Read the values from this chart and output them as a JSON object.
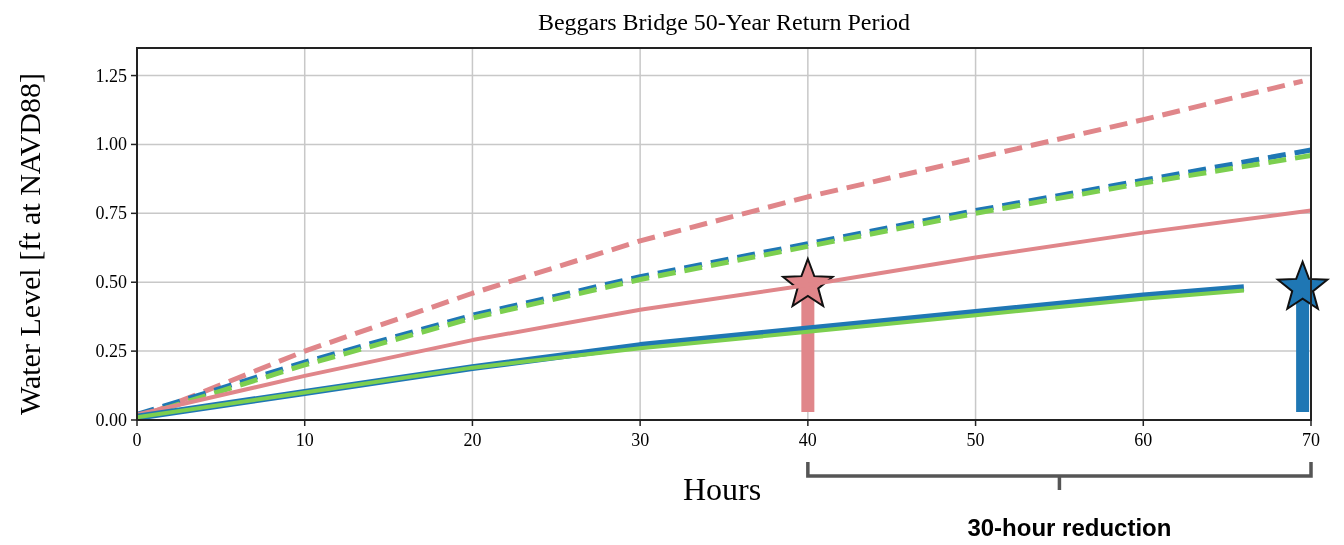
{
  "chart_data": {
    "type": "line",
    "title": "Beggars Bridge 50-Year Return Period",
    "xlabel": "Hours",
    "ylabel": "Water Level [ft at NAVD88]",
    "x": [
      0,
      10,
      20,
      30,
      40,
      50,
      60,
      70
    ],
    "xlim": [
      0,
      70
    ],
    "xticks": [
      0,
      10,
      20,
      30,
      40,
      50,
      60,
      70
    ],
    "ylim": [
      0,
      1.35
    ],
    "yticks": [
      {
        "value": 0,
        "label": "0.00"
      },
      {
        "value": 0.25,
        "label": "0.25"
      },
      {
        "value": 0.5,
        "label": "0.50"
      },
      {
        "value": 0.75,
        "label": "0.75"
      },
      {
        "value": 1,
        "label": "1.00"
      },
      {
        "value": 1.25,
        "label": "1.25"
      }
    ],
    "grid": true,
    "series": [
      {
        "color": "#e0868a",
        "line_style": "dashed",
        "x": [
          1,
          10,
          20,
          30,
          40,
          50,
          60,
          69.5
        ],
        "values": [
          0.03,
          0.25,
          0.46,
          0.65,
          0.81,
          0.95,
          1.09,
          1.23
        ]
      },
      {
        "color": "#1f77b4",
        "line_style": "dashed",
        "values": [
          0.02,
          0.21,
          0.38,
          0.52,
          0.64,
          0.76,
          0.87,
          0.98
        ]
      },
      {
        "color": "#7ccf4f",
        "line_style": "dashed",
        "values": [
          0.01,
          0.2,
          0.37,
          0.51,
          0.63,
          0.75,
          0.86,
          0.96
        ]
      },
      {
        "color": "#e0868a",
        "line_style": "solid",
        "values": [
          0.02,
          0.16,
          0.29,
          0.4,
          0.49,
          0.59,
          0.68,
          0.76
        ]
      },
      {
        "color": "#1f77b4",
        "line_style": "solid",
        "x": [
          0,
          10,
          20,
          30,
          40,
          50,
          60,
          66
        ],
        "values": [
          0.01,
          0.1,
          0.19,
          0.27,
          0.33,
          0.39,
          0.45,
          0.48
        ]
      },
      {
        "color": "#7ccf4f",
        "line_style": "solid",
        "x": [
          0,
          10,
          20,
          30,
          40,
          50,
          60,
          66
        ],
        "values": [
          0.01,
          0.1,
          0.19,
          0.26,
          0.32,
          0.38,
          0.44,
          0.47
        ]
      },
      {
        "type": "lollipop",
        "marker": "star",
        "x": [
          40,
          69.5
        ],
        "values": [
          0.49,
          0.48
        ],
        "colors": [
          "#e0868a",
          "#1f77b4"
        ]
      }
    ],
    "annotations": [
      "30-hour reduction"
    ]
  }
}
